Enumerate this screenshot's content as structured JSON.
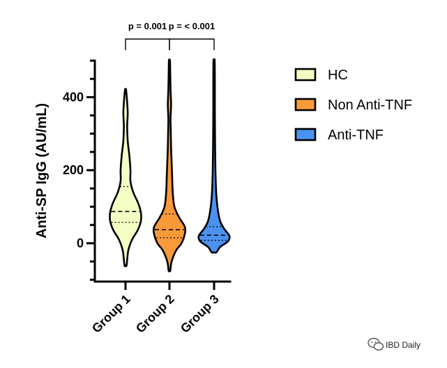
{
  "chart_data": {
    "type": "violin",
    "title": "",
    "ylabel": "Anti-SP IgG (AU/mL)",
    "xlabel": "",
    "ylim": [
      -105,
      500
    ],
    "yticks": [
      0,
      200,
      400
    ],
    "ytick_labels": [
      "0",
      "200",
      "400"
    ],
    "categories": [
      "Group 1",
      "Group 2",
      "Group 3"
    ],
    "series": [
      {
        "name": "HC",
        "category": "Group 1",
        "color": "#F5FFC4",
        "min": -60,
        "max": 420,
        "median": 87,
        "q1": 57,
        "q3": 155,
        "density": [
          [
            -60,
            2
          ],
          [
            -20,
            5
          ],
          [
            10,
            12
          ],
          [
            35,
            22
          ],
          [
            60,
            28
          ],
          [
            85,
            28
          ],
          [
            110,
            23
          ],
          [
            140,
            14
          ],
          [
            170,
            9
          ],
          [
            200,
            9
          ],
          [
            240,
            7
          ],
          [
            280,
            4
          ],
          [
            320,
            3
          ],
          [
            355,
            4
          ],
          [
            385,
            3
          ],
          [
            420,
            1
          ]
        ]
      },
      {
        "name": "Non Anti-TNF",
        "category": "Group 2",
        "color": "#F99A3A",
        "min": -75,
        "max": 500,
        "median": 37,
        "q1": 15,
        "q3": 80,
        "density": [
          [
            -75,
            1.5
          ],
          [
            -50,
            4
          ],
          [
            -20,
            12
          ],
          [
            0,
            22
          ],
          [
            25,
            28
          ],
          [
            45,
            28
          ],
          [
            70,
            18
          ],
          [
            100,
            9
          ],
          [
            140,
            6
          ],
          [
            180,
            5
          ],
          [
            220,
            4
          ],
          [
            260,
            3
          ],
          [
            300,
            2.5
          ],
          [
            340,
            2
          ],
          [
            380,
            3
          ],
          [
            420,
            2
          ],
          [
            460,
            1.5
          ],
          [
            500,
            1
          ]
        ]
      },
      {
        "name": "Anti-TNF",
        "category": "Group 3",
        "color": "#4B92F0",
        "min": -25,
        "max": 500,
        "median": 22,
        "q1": 8,
        "q3": 45,
        "density": [
          [
            -25,
            3
          ],
          [
            -10,
            8
          ],
          [
            5,
            18
          ],
          [
            20,
            20
          ],
          [
            40,
            13
          ],
          [
            60,
            8
          ],
          [
            90,
            5
          ],
          [
            130,
            3
          ],
          [
            180,
            2
          ],
          [
            240,
            1.5
          ],
          [
            300,
            1.2
          ],
          [
            380,
            1
          ],
          [
            450,
            1
          ],
          [
            500,
            0.8
          ]
        ]
      }
    ],
    "legend": {
      "placement": "right",
      "entries": [
        "HC",
        "Non Anti-TNF",
        "Anti-TNF"
      ]
    },
    "annotations": [
      {
        "text": "p = 0.001",
        "from": "Group 1",
        "to": "Group 2"
      },
      {
        "text": "p = < 0.001",
        "from": "Group 2",
        "to": "Group 3"
      }
    ],
    "grid": false
  },
  "watermark": {
    "icon": "wechat-icon",
    "text": "IBD Daily"
  }
}
